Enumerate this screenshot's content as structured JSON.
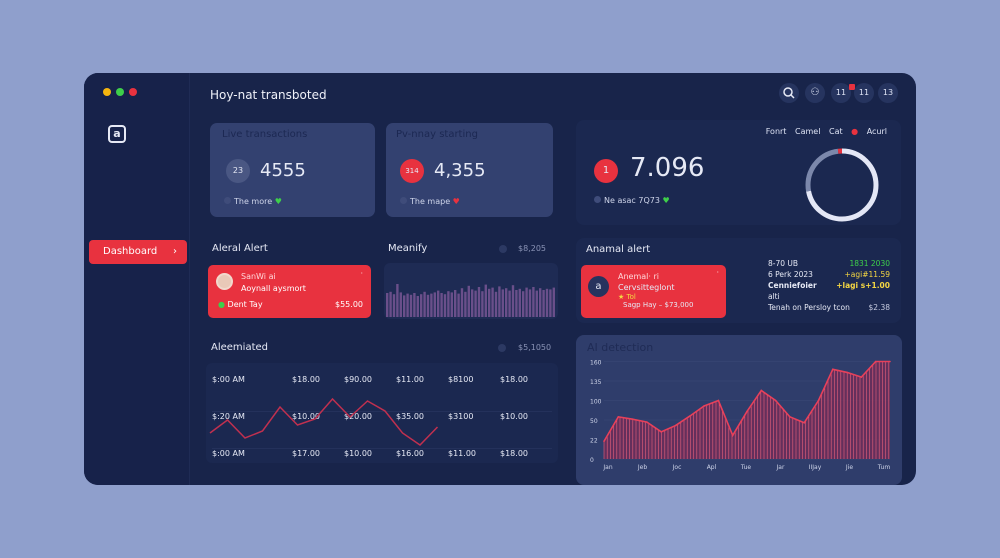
{
  "window": {
    "title": "Hoy-nat transboted",
    "controls": [
      "#f5b50f",
      "#3ecf4a",
      "#e8323f"
    ]
  },
  "sidebar": {
    "logo": "a",
    "items": [
      {
        "label": "Dashboard",
        "chevron": "›"
      }
    ]
  },
  "toolbar": {
    "icons": [
      "search-icon",
      "users-icon"
    ],
    "buttons": [
      "11",
      "11",
      "13"
    ]
  },
  "cards": [
    {
      "title": "Live transactions",
      "badge": "23",
      "value": "4555",
      "footer": "The more",
      "trend": "♥",
      "trend_color": "#3ecf4a"
    },
    {
      "title": "Pv-nnay starting",
      "badge": "314",
      "value": "4,355",
      "footer": "The mape",
      "trend": "♥",
      "trend_color": "#e8323f"
    }
  ],
  "summary": {
    "badge": "1",
    "value": "7.096",
    "footer": "Ne asac 7Q73",
    "trend": "♥",
    "legend": [
      "Fonrt",
      "Camel",
      "Cat",
      "Acurl"
    ],
    "donut": {
      "segments": [
        {
          "value": 0.72,
          "color": "#e4e7f6"
        },
        {
          "value": 0.26,
          "color": "#7c88ab"
        },
        {
          "value": 0.02,
          "color": "#e8323f"
        }
      ]
    }
  },
  "alert": {
    "title": "Aleral Alert",
    "name": "SanWi",
    "sub": "ai",
    "message": "Aoynall aysmort",
    "footer": "Dent Tay",
    "amount": "$55.00"
  },
  "meanify": {
    "title": "Meanify",
    "value": "$8,205",
    "bars": [
      40,
      42,
      38,
      55,
      41,
      36,
      39,
      37,
      40,
      35,
      38,
      42,
      37,
      39,
      41,
      44,
      40,
      38,
      43,
      41,
      45,
      39,
      48,
      42,
      52,
      46,
      44,
      50,
      43,
      54,
      47,
      49,
      42,
      51,
      46,
      48,
      44,
      53,
      45,
      47,
      43,
      49,
      46,
      50,
      44,
      48,
      45,
      47,
      46,
      49
    ]
  },
  "anomal": {
    "title": "Anamal alert",
    "icon": "a",
    "name": "Anemal",
    "sub": "· ri",
    "message": "Cervsitteglont",
    "tag": "★ Tol",
    "footer": "Sagp Hay – $73,000",
    "rows": [
      {
        "label": "8-70 UB",
        "value": "1831 2030",
        "color": "#3ecf4a"
      },
      {
        "label": "6 Perk 2023",
        "value": "+agi#11.59",
        "color": "#f5d742"
      },
      {
        "label": "Cenniefoier",
        "value": "+lagi s+1.00",
        "color": "#f5d742"
      },
      {
        "label": "alti",
        "value": "",
        "color": ""
      },
      {
        "label": "Tenah on Persloy tcon",
        "value": "$2.38",
        "color": "#c6cbe0"
      }
    ]
  },
  "aleemiated": {
    "title": "Aleemiated",
    "value": "$5,1050",
    "rows": [
      [
        "$:00 AM",
        "$18.00",
        "$90.00",
        "$11.00",
        "$8100",
        "$18.00"
      ],
      [
        "$:20 AM",
        "$10.00",
        "$20.00",
        "$35.00",
        "$3100",
        "$10.00"
      ],
      [
        "$:00 AM",
        "$17.00",
        "$10.00",
        "$16.00",
        "$11.00",
        "$18.00"
      ]
    ],
    "line": [
      20,
      33,
      15,
      22,
      46,
      28,
      34,
      54,
      36,
      52,
      42,
      20,
      8,
      26
    ]
  },
  "chart_data": {
    "type": "area",
    "title": "AI detection",
    "yticks": [
      "0",
      "22",
      "50",
      "100",
      "135",
      "160"
    ],
    "xticks": [
      "Jan",
      "Jeb",
      "Joc",
      "Apl",
      "Tue",
      "Jar",
      "IIJay",
      "Jie",
      "Tum"
    ],
    "values": [
      20,
      58,
      52,
      47,
      33,
      42,
      60,
      86,
      100,
      28,
      72,
      118,
      100,
      58,
      46,
      100,
      150,
      146,
      140,
      170,
      168
    ],
    "color": "#e8405a"
  }
}
